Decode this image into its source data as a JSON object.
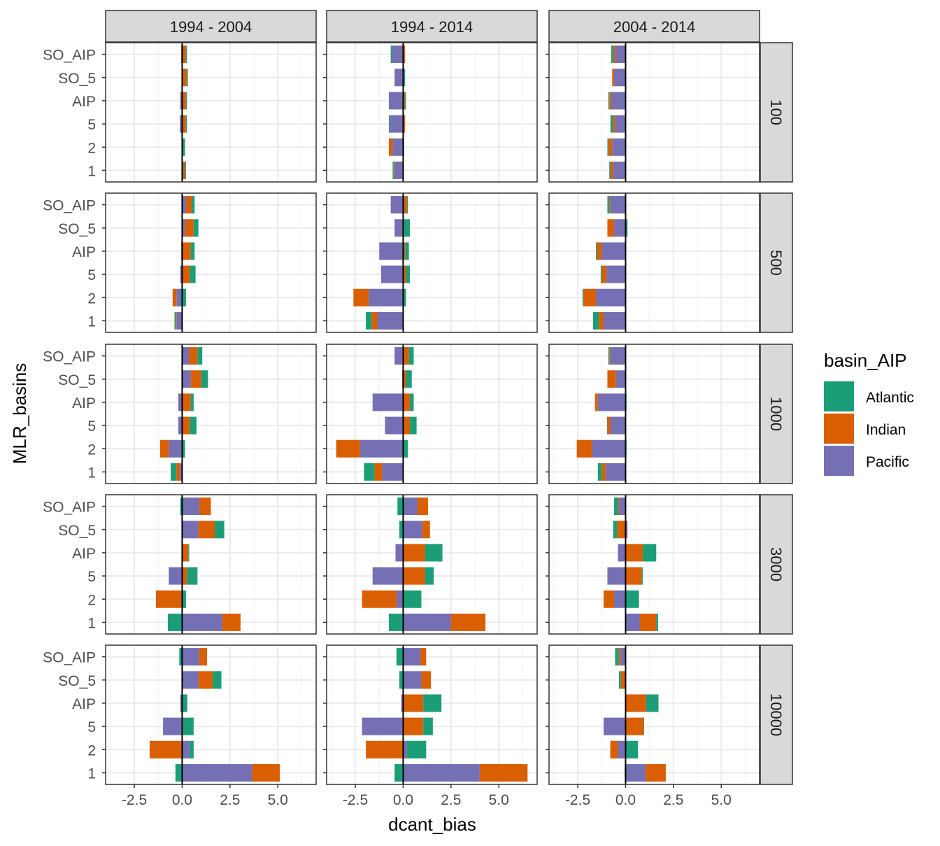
{
  "chart_data": {
    "type": "bar",
    "orientation": "horizontal",
    "stacked": "diverging",
    "facet_cols": [
      "1994 - 2004",
      "1994 - 2014",
      "2004 - 2014"
    ],
    "facet_rows": [
      "100",
      "500",
      "1000",
      "3000",
      "10000"
    ],
    "categories": [
      "SO_AIP",
      "SO_5",
      "AIP",
      "5",
      "2",
      "1"
    ],
    "xlabel": "dcant_bias",
    "ylabel": "MLR_basins",
    "xlim": [
      -4,
      7
    ],
    "xticks": [
      "-2.5",
      "0.0",
      "2.5",
      "5.0"
    ],
    "xtick_values": [
      -2.5,
      0,
      2.5,
      5
    ],
    "grid": true,
    "legend": {
      "title": "basin_AIP",
      "position": "right",
      "entries": [
        {
          "name": "Atlantic",
          "color": "#1B9E77"
        },
        {
          "name": "Indian",
          "color": "#D95F02"
        },
        {
          "name": "Pacific",
          "color": "#7570B3"
        }
      ]
    },
    "series_order": [
      "Pacific",
      "Indian",
      "Atlantic"
    ],
    "panels": [
      {
        "row": "100",
        "col": "1994 - 2004",
        "values": {
          "SO_AIP": {
            "Atlantic": 0.05,
            "Indian": 0.2,
            "Pacific": -0.05
          },
          "SO_5": {
            "Atlantic": 0.05,
            "Indian": 0.2,
            "Pacific": 0.05
          },
          "AIP": {
            "Atlantic": 0.05,
            "Indian": 0.2,
            "Pacific": -0.1
          },
          "5": {
            "Atlantic": 0.05,
            "Indian": 0.2,
            "Pacific": -0.12
          },
          "2": {
            "Atlantic": 0.1,
            "Indian": 0.05,
            "Pacific": -0.03
          },
          "1": {
            "Atlantic": 0.05,
            "Indian": 0.1,
            "Pacific": 0.05
          }
        }
      },
      {
        "row": "100",
        "col": "1994 - 2014",
        "values": {
          "SO_AIP": {
            "Atlantic": -0.05,
            "Indian": 0.1,
            "Pacific": -0.6
          },
          "SO_5": {
            "Atlantic": 0.05,
            "Indian": 0.05,
            "Pacific": -0.45
          },
          "AIP": {
            "Atlantic": 0.05,
            "Indian": 0.1,
            "Pacific": -0.75
          },
          "5": {
            "Atlantic": -0.05,
            "Indian": 0.1,
            "Pacific": -0.7
          },
          "2": {
            "Atlantic": 0.05,
            "Indian": -0.2,
            "Pacific": -0.55
          },
          "1": {
            "Atlantic": -0.05,
            "Indian": -0.05,
            "Pacific": -0.45
          }
        }
      },
      {
        "row": "100",
        "col": "2004 - 2014",
        "values": {
          "SO_AIP": {
            "Atlantic": -0.1,
            "Indian": -0.1,
            "Pacific": -0.55
          },
          "SO_5": {
            "Atlantic": 0.02,
            "Indian": -0.1,
            "Pacific": -0.6
          },
          "AIP": {
            "Atlantic": -0.05,
            "Indian": -0.1,
            "Pacific": -0.75
          },
          "5": {
            "Atlantic": -0.12,
            "Indian": -0.12,
            "Pacific": -0.55
          },
          "2": {
            "Atlantic": -0.05,
            "Indian": -0.2,
            "Pacific": -0.7
          },
          "1": {
            "Atlantic": -0.05,
            "Indian": -0.15,
            "Pacific": -0.65
          }
        }
      },
      {
        "row": "500",
        "col": "1994 - 2004",
        "values": {
          "SO_AIP": {
            "Atlantic": 0.15,
            "Indian": 0.3,
            "Pacific": 0.2
          },
          "SO_5": {
            "Atlantic": 0.25,
            "Indian": 0.45,
            "Pacific": 0.15
          },
          "AIP": {
            "Atlantic": 0.2,
            "Indian": 0.45,
            "Pacific": -0.05
          },
          "5": {
            "Atlantic": 0.3,
            "Indian": 0.4,
            "Pacific": -0.1
          },
          "2": {
            "Atlantic": 0.2,
            "Indian": -0.2,
            "Pacific": -0.3
          },
          "1": {
            "Atlantic": -0.05,
            "Indian": -0.05,
            "Pacific": -0.3
          }
        }
      },
      {
        "row": "500",
        "col": "1994 - 2014",
        "values": {
          "SO_AIP": {
            "Atlantic": 0.05,
            "Indian": 0.2,
            "Pacific": -0.65
          },
          "SO_5": {
            "Atlantic": 0.3,
            "Indian": 0.05,
            "Pacific": -0.45
          },
          "AIP": {
            "Atlantic": 0.2,
            "Indian": 0.1,
            "Pacific": -1.25
          },
          "5": {
            "Atlantic": 0.2,
            "Indian": 0.15,
            "Pacific": -1.15
          },
          "2": {
            "Atlantic": 0.15,
            "Indian": -0.8,
            "Pacific": -1.8
          },
          "1": {
            "Atlantic": -0.3,
            "Indian": -0.3,
            "Pacific": -1.35
          }
        }
      },
      {
        "row": "500",
        "col": "2004 - 2014",
        "values": {
          "SO_AIP": {
            "Atlantic": -0.1,
            "Indian": -0.05,
            "Pacific": -0.8
          },
          "SO_5": {
            "Atlantic": 0.1,
            "Indian": -0.35,
            "Pacific": -0.6
          },
          "AIP": {
            "Atlantic": -0.05,
            "Indian": -0.25,
            "Pacific": -1.25
          },
          "5": {
            "Atlantic": -0.05,
            "Indian": -0.25,
            "Pacific": -1.0
          },
          "2": {
            "Atlantic": -0.05,
            "Indian": -0.65,
            "Pacific": -1.55
          },
          "1": {
            "Atlantic": -0.3,
            "Indian": -0.25,
            "Pacific": -1.15
          }
        }
      },
      {
        "row": "1000",
        "col": "1994 - 2004",
        "values": {
          "SO_AIP": {
            "Atlantic": 0.25,
            "Indian": 0.45,
            "Pacific": 0.35
          },
          "SO_5": {
            "Atlantic": 0.35,
            "Indian": 0.55,
            "Pacific": 0.45
          },
          "AIP": {
            "Atlantic": 0.15,
            "Indian": 0.45,
            "Pacific": -0.2
          },
          "5": {
            "Atlantic": 0.35,
            "Indian": 0.4,
            "Pacific": -0.2
          },
          "2": {
            "Atlantic": 0.15,
            "Indian": -0.45,
            "Pacific": -0.7
          },
          "1": {
            "Atlantic": -0.3,
            "Indian": -0.2,
            "Pacific": -0.1
          }
        }
      },
      {
        "row": "1000",
        "col": "1994 - 2014",
        "values": {
          "SO_AIP": {
            "Atlantic": 0.25,
            "Indian": 0.3,
            "Pacific": -0.45
          },
          "SO_5": {
            "Atlantic": 0.3,
            "Indian": 0.15,
            "Pacific": -0.05
          },
          "AIP": {
            "Atlantic": 0.2,
            "Indian": 0.35,
            "Pacific": -1.6
          },
          "5": {
            "Atlantic": 0.35,
            "Indian": 0.35,
            "Pacific": -0.95
          },
          "2": {
            "Atlantic": 0.25,
            "Indian": -1.25,
            "Pacific": -2.25
          },
          "1": {
            "Atlantic": -0.55,
            "Indian": -0.4,
            "Pacific": -1.1
          }
        }
      },
      {
        "row": "1000",
        "col": "2004 - 2014",
        "values": {
          "SO_AIP": {
            "Atlantic": -0.05,
            "Indian": -0.05,
            "Pacific": -0.8
          },
          "SO_5": {
            "Atlantic": 0.02,
            "Indian": -0.45,
            "Pacific": -0.5
          },
          "AIP": {
            "Atlantic": 0.05,
            "Indian": -0.15,
            "Pacific": -1.45
          },
          "5": {
            "Atlantic": -0.02,
            "Indian": -0.15,
            "Pacific": -0.8
          },
          "2": {
            "Atlantic": 0.05,
            "Indian": -0.8,
            "Pacific": -1.75
          },
          "1": {
            "Atlantic": -0.2,
            "Indian": -0.2,
            "Pacific": -1.05
          }
        }
      },
      {
        "row": "3000",
        "col": "1994 - 2004",
        "values": {
          "SO_AIP": {
            "Atlantic": -0.1,
            "Indian": 0.6,
            "Pacific": 0.9
          },
          "SO_5": {
            "Atlantic": 0.5,
            "Indian": 0.85,
            "Pacific": 0.85
          },
          "AIP": {
            "Atlantic": 0.05,
            "Indian": 0.3,
            "Pacific": 0.02
          },
          "5": {
            "Atlantic": 0.55,
            "Indian": 0.25,
            "Pacific": -0.7
          },
          "2": {
            "Atlantic": 0.2,
            "Indian": -1.35,
            "Pacific": -0.02
          },
          "1": {
            "Atlantic": -0.75,
            "Indian": 0.95,
            "Pacific": 2.1
          }
        }
      },
      {
        "row": "3000",
        "col": "1994 - 2014",
        "values": {
          "SO_AIP": {
            "Atlantic": -0.3,
            "Indian": 0.55,
            "Pacific": 0.75
          },
          "SO_5": {
            "Atlantic": -0.2,
            "Indian": 0.4,
            "Pacific": 1.0
          },
          "AIP": {
            "Atlantic": 0.9,
            "Indian": 1.15,
            "Pacific": -0.4
          },
          "5": {
            "Atlantic": 0.45,
            "Indian": 1.15,
            "Pacific": -1.6
          },
          "2": {
            "Atlantic": 0.95,
            "Indian": -1.8,
            "Pacific": -0.35
          },
          "1": {
            "Atlantic": -0.75,
            "Indian": 1.8,
            "Pacific": 2.5
          }
        }
      },
      {
        "row": "3000",
        "col": "2004 - 2014",
        "values": {
          "SO_AIP": {
            "Atlantic": -0.2,
            "Indian": -0.05,
            "Pacific": -0.35
          },
          "SO_5": {
            "Atlantic": -0.2,
            "Indian": -0.45,
            "Pacific": 0.1
          },
          "AIP": {
            "Atlantic": 0.7,
            "Indian": 0.9,
            "Pacific": -0.4
          },
          "5": {
            "Atlantic": 0.05,
            "Indian": 0.85,
            "Pacific": -0.95
          },
          "2": {
            "Atlantic": 0.7,
            "Indian": -0.55,
            "Pacific": -0.6
          },
          "1": {
            "Atlantic": 0.1,
            "Indian": 0.85,
            "Pacific": 0.75
          }
        }
      },
      {
        "row": "10000",
        "col": "1994 - 2004",
        "values": {
          "SO_AIP": {
            "Atlantic": -0.15,
            "Indian": 0.4,
            "Pacific": 0.9
          },
          "SO_5": {
            "Atlantic": 0.45,
            "Indian": 0.75,
            "Pacific": 0.85
          },
          "AIP": {
            "Atlantic": 0.25,
            "Indian": 0.02,
            "Pacific": -0.1
          },
          "5": {
            "Atlantic": 0.55,
            "Indian": 0.05,
            "Pacific": -1.0
          },
          "2": {
            "Atlantic": 0.2,
            "Indian": -1.7,
            "Pacific": 0.4
          },
          "1": {
            "Atlantic": -0.35,
            "Indian": 1.45,
            "Pacific": 3.65
          }
        }
      },
      {
        "row": "10000",
        "col": "1994 - 2014",
        "values": {
          "SO_AIP": {
            "Atlantic": -0.35,
            "Indian": 0.3,
            "Pacific": 0.9
          },
          "SO_5": {
            "Atlantic": -0.2,
            "Indian": 0.5,
            "Pacific": 0.95
          },
          "AIP": {
            "Atlantic": 0.95,
            "Indian": 1.05,
            "Pacific": -0.1
          },
          "5": {
            "Atlantic": 0.5,
            "Indian": 1.05,
            "Pacific": -2.15
          },
          "2": {
            "Atlantic": 1.0,
            "Indian": -1.95,
            "Pacific": 0.2
          },
          "1": {
            "Atlantic": -0.45,
            "Indian": 2.5,
            "Pacific": 4.0
          }
        }
      },
      {
        "row": "10000",
        "col": "2004 - 2014",
        "values": {
          "SO_AIP": {
            "Atlantic": -0.2,
            "Indian": -0.1,
            "Pacific": -0.25
          },
          "SO_5": {
            "Atlantic": -0.1,
            "Indian": -0.25,
            "Pacific": 0.02
          },
          "AIP": {
            "Atlantic": 0.65,
            "Indian": 1.05,
            "Pacific": 0.02
          },
          "5": {
            "Atlantic": 0.02,
            "Indian": 0.95,
            "Pacific": -1.15
          },
          "2": {
            "Atlantic": 0.65,
            "Indian": -0.4,
            "Pacific": -0.4
          },
          "1": {
            "Atlantic": -0.05,
            "Indian": 1.05,
            "Pacific": 1.05
          }
        }
      }
    ]
  }
}
